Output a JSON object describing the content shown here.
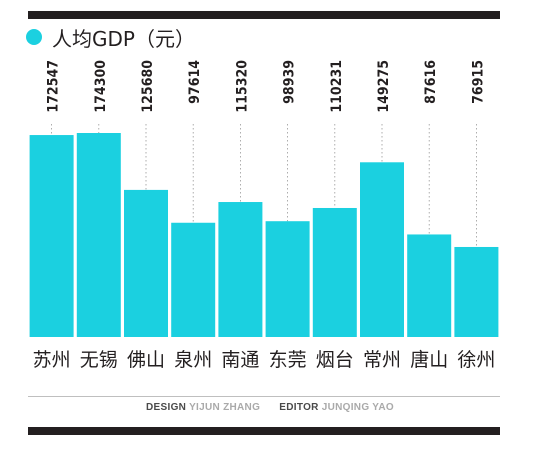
{
  "legend": {
    "label": "人均GDP（元）"
  },
  "credits": {
    "design_key": "DESIGN",
    "design_name": "YIJUN ZHANG",
    "editor_key": "EDITOR",
    "editor_name": "JUNQING YAO"
  },
  "colors": {
    "bar": "#1bd0e0",
    "rule": "#231f20",
    "guide": "#999999"
  },
  "chart_data": {
    "type": "bar",
    "categories": [
      "苏州",
      "无锡",
      "佛山",
      "泉州",
      "南通",
      "东莞",
      "烟台",
      "常州",
      "唐山",
      "徐州"
    ],
    "values": [
      172547,
      174300,
      125680,
      97614,
      115320,
      98939,
      110231,
      149275,
      87616,
      76915
    ],
    "value_labels": [
      "172547",
      "174300",
      "125680",
      "97614",
      "115320",
      "98939",
      "110231",
      "149275",
      "87616",
      "76915"
    ],
    "series": [
      {
        "name": "人均GDP（元）",
        "values": [
          172547,
          174300,
          125680,
          97614,
          115320,
          98939,
          110231,
          149275,
          87616,
          76915
        ]
      }
    ],
    "title": "",
    "xlabel": "",
    "ylabel": "",
    "ylim": [
      0,
      174300
    ],
    "grid": false,
    "legend_position": "top-left"
  }
}
